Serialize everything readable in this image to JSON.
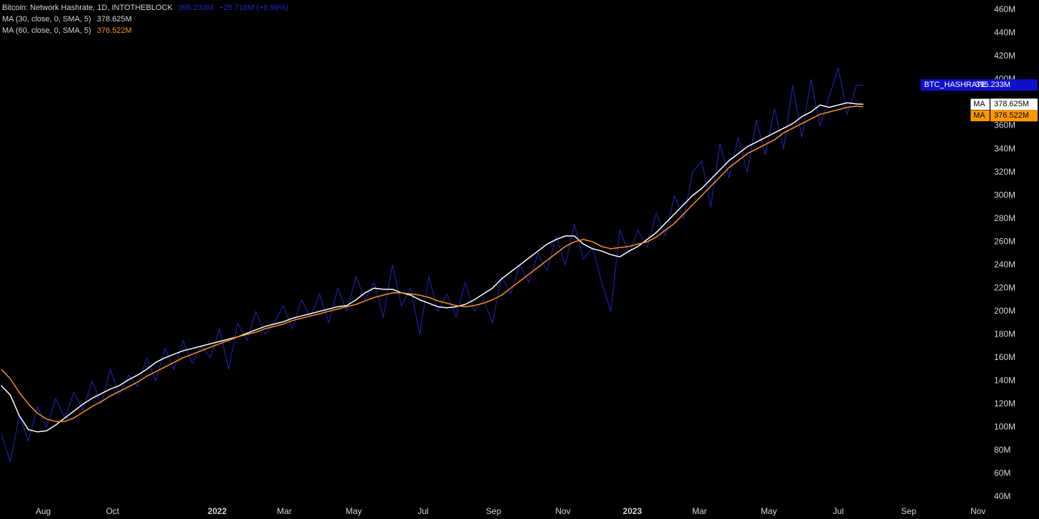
{
  "header": {
    "title": "Bitcoin: Network Hashrate, 1D, INTOTHEBLOCK",
    "value": "395.233M",
    "change": "+25.718M (+6.96%)"
  },
  "indicators": [
    {
      "label": "MA (30, close, 0, SMA, 5)",
      "value": "378.625M"
    },
    {
      "label": "MA (60, close, 0, SMA, 5)",
      "value": "376.522M"
    }
  ],
  "chart_data": {
    "type": "line",
    "x": [
      "2021-06-25",
      "2021-07-03",
      "2021-07-11",
      "2021-07-19",
      "2021-07-27",
      "2021-08-04",
      "2021-08-12",
      "2021-08-20",
      "2021-08-28",
      "2021-09-05",
      "2021-09-13",
      "2021-09-21",
      "2021-09-29",
      "2021-10-07",
      "2021-10-15",
      "2021-10-23",
      "2021-10-31",
      "2021-11-08",
      "2021-11-16",
      "2021-11-24",
      "2021-12-02",
      "2021-12-10",
      "2021-12-18",
      "2021-12-26",
      "2022-01-03",
      "2022-01-11",
      "2022-01-19",
      "2022-01-27",
      "2022-02-04",
      "2022-02-12",
      "2022-02-20",
      "2022-02-28",
      "2022-03-08",
      "2022-03-16",
      "2022-03-24",
      "2022-04-01",
      "2022-04-09",
      "2022-04-17",
      "2022-04-25",
      "2022-05-03",
      "2022-05-11",
      "2022-05-19",
      "2022-05-27",
      "2022-06-04",
      "2022-06-12",
      "2022-06-20",
      "2022-06-28",
      "2022-07-06",
      "2022-07-14",
      "2022-07-22",
      "2022-07-30",
      "2022-08-07",
      "2022-08-15",
      "2022-08-23",
      "2022-08-31",
      "2022-09-08",
      "2022-09-16",
      "2022-09-24",
      "2022-10-02",
      "2022-10-10",
      "2022-10-18",
      "2022-10-26",
      "2022-11-03",
      "2022-11-11",
      "2022-11-19",
      "2022-11-27",
      "2022-12-05",
      "2022-12-13",
      "2022-12-21",
      "2022-12-29",
      "2023-01-06",
      "2023-01-14",
      "2023-01-22",
      "2023-01-30",
      "2023-02-07",
      "2023-02-15",
      "2023-02-23",
      "2023-03-03",
      "2023-03-11",
      "2023-03-19",
      "2023-03-27",
      "2023-04-04",
      "2023-04-12",
      "2023-04-20",
      "2023-04-28",
      "2023-05-06",
      "2023-05-14",
      "2023-05-22",
      "2023-05-30",
      "2023-06-07",
      "2023-06-15",
      "2023-06-23",
      "2023-07-01",
      "2023-07-09",
      "2023-07-17",
      "2023-07-23"
    ],
    "xlim": [
      "2021-06-24",
      "2023-11-10"
    ],
    "xticks": [
      {
        "value": "2021-08-01",
        "label": "Aug"
      },
      {
        "value": "2021-10-01",
        "label": "Oct"
      },
      {
        "value": "2022-01-01",
        "label": "2022"
      },
      {
        "value": "2022-03-01",
        "label": "Mar"
      },
      {
        "value": "2022-05-01",
        "label": "May"
      },
      {
        "value": "2022-07-01",
        "label": "Jul"
      },
      {
        "value": "2022-09-01",
        "label": "Sep"
      },
      {
        "value": "2022-11-01",
        "label": "Nov"
      },
      {
        "value": "2023-01-01",
        "label": "2023"
      },
      {
        "value": "2023-03-01",
        "label": "Mar"
      },
      {
        "value": "2023-05-01",
        "label": "May"
      },
      {
        "value": "2023-07-01",
        "label": "Jul"
      },
      {
        "value": "2023-09-01",
        "label": "Sep"
      },
      {
        "value": "2023-11-01",
        "label": "Nov"
      }
    ],
    "ylim": [
      35,
      468.6
    ],
    "yticks": [
      {
        "value": 40,
        "label": "40M"
      },
      {
        "value": 60,
        "label": "60M"
      },
      {
        "value": 80,
        "label": "80M"
      },
      {
        "value": 100,
        "label": "100M"
      },
      {
        "value": 120,
        "label": "120M"
      },
      {
        "value": 140,
        "label": "140M"
      },
      {
        "value": 160,
        "label": "160M"
      },
      {
        "value": 180,
        "label": "180M"
      },
      {
        "value": 200,
        "label": "200M"
      },
      {
        "value": 220,
        "label": "220M"
      },
      {
        "value": 240,
        "label": "240M"
      },
      {
        "value": 260,
        "label": "260M"
      },
      {
        "value": 280,
        "label": "280M"
      },
      {
        "value": 300,
        "label": "300M"
      },
      {
        "value": 320,
        "label": "320M"
      },
      {
        "value": 340,
        "label": "340M"
      },
      {
        "value": 360,
        "label": "360M"
      },
      {
        "value": 380,
        "label": "380M"
      },
      {
        "value": 400,
        "label": "400M"
      },
      {
        "value": 420,
        "label": "420M"
      },
      {
        "value": 440,
        "label": "440M"
      },
      {
        "value": 460,
        "label": "460M"
      }
    ],
    "grid": false,
    "series": [
      {
        "name": "BTC_HASHRATE",
        "color": "#2424c8",
        "values": [
          95,
          70,
          110,
          88,
          118,
          100,
          125,
          108,
          130,
          115,
          140,
          120,
          150,
          128,
          145,
          135,
          160,
          140,
          168,
          150,
          175,
          155,
          170,
          160,
          185,
          150,
          190,
          175,
          200,
          180,
          190,
          205,
          185,
          210,
          195,
          215,
          190,
          220,
          200,
          230,
          210,
          225,
          195,
          240,
          205,
          220,
          180,
          230,
          200,
          215,
          195,
          225,
          200,
          210,
          190,
          230,
          215,
          240,
          225,
          250,
          235,
          265,
          240,
          275,
          245,
          255,
          225,
          200,
          270,
          250,
          270,
          255,
          285,
          265,
          300,
          280,
          320,
          330,
          290,
          345,
          315,
          350,
          320,
          365,
          335,
          375,
          340,
          395,
          350,
          400,
          360,
          385,
          410,
          370,
          395,
          395.233
        ]
      },
      {
        "name": "MA",
        "color": "#ffffff",
        "values": [
          136,
          128,
          110,
          98,
          96,
          97,
          102,
          108,
          114,
          120,
          125,
          129,
          133,
          136,
          141,
          145,
          150,
          156,
          160,
          163,
          166,
          168,
          170,
          172,
          174,
          176,
          178,
          181,
          184,
          187,
          189,
          191,
          194,
          196,
          198,
          200,
          202,
          204,
          205,
          210,
          216,
          220,
          219,
          219,
          216,
          214,
          210,
          207,
          204,
          203,
          204,
          206,
          210,
          215,
          220,
          228,
          234,
          240,
          246,
          252,
          258,
          262,
          265,
          265,
          258,
          254,
          252,
          249,
          247,
          252,
          256,
          262,
          268,
          276,
          284,
          292,
          300,
          306,
          314,
          322,
          330,
          336,
          342,
          346,
          350,
          354,
          358,
          362,
          368,
          372,
          378,
          376,
          378,
          380,
          379,
          378.625
        ]
      },
      {
        "name": "MA",
        "color": "#f7931a",
        "values": [
          150,
          142,
          130,
          120,
          112,
          107,
          105,
          105,
          108,
          113,
          118,
          122,
          127,
          131,
          135,
          139,
          144,
          148,
          152,
          156,
          160,
          163,
          166,
          169,
          172,
          175,
          178,
          180,
          182,
          185,
          187,
          189,
          192,
          194,
          196,
          198,
          200,
          202,
          204,
          206,
          209,
          212,
          214,
          216,
          216,
          215,
          214,
          212,
          209,
          207,
          205,
          204,
          205,
          207,
          210,
          214,
          220,
          226,
          232,
          238,
          244,
          250,
          256,
          260,
          262,
          260,
          256,
          254,
          255,
          256,
          258,
          260,
          264,
          270,
          276,
          284,
          292,
          300,
          308,
          316,
          324,
          330,
          336,
          340,
          344,
          348,
          354,
          358,
          362,
          366,
          370,
          372,
          374,
          376,
          377,
          376.522
        ]
      }
    ]
  }
}
